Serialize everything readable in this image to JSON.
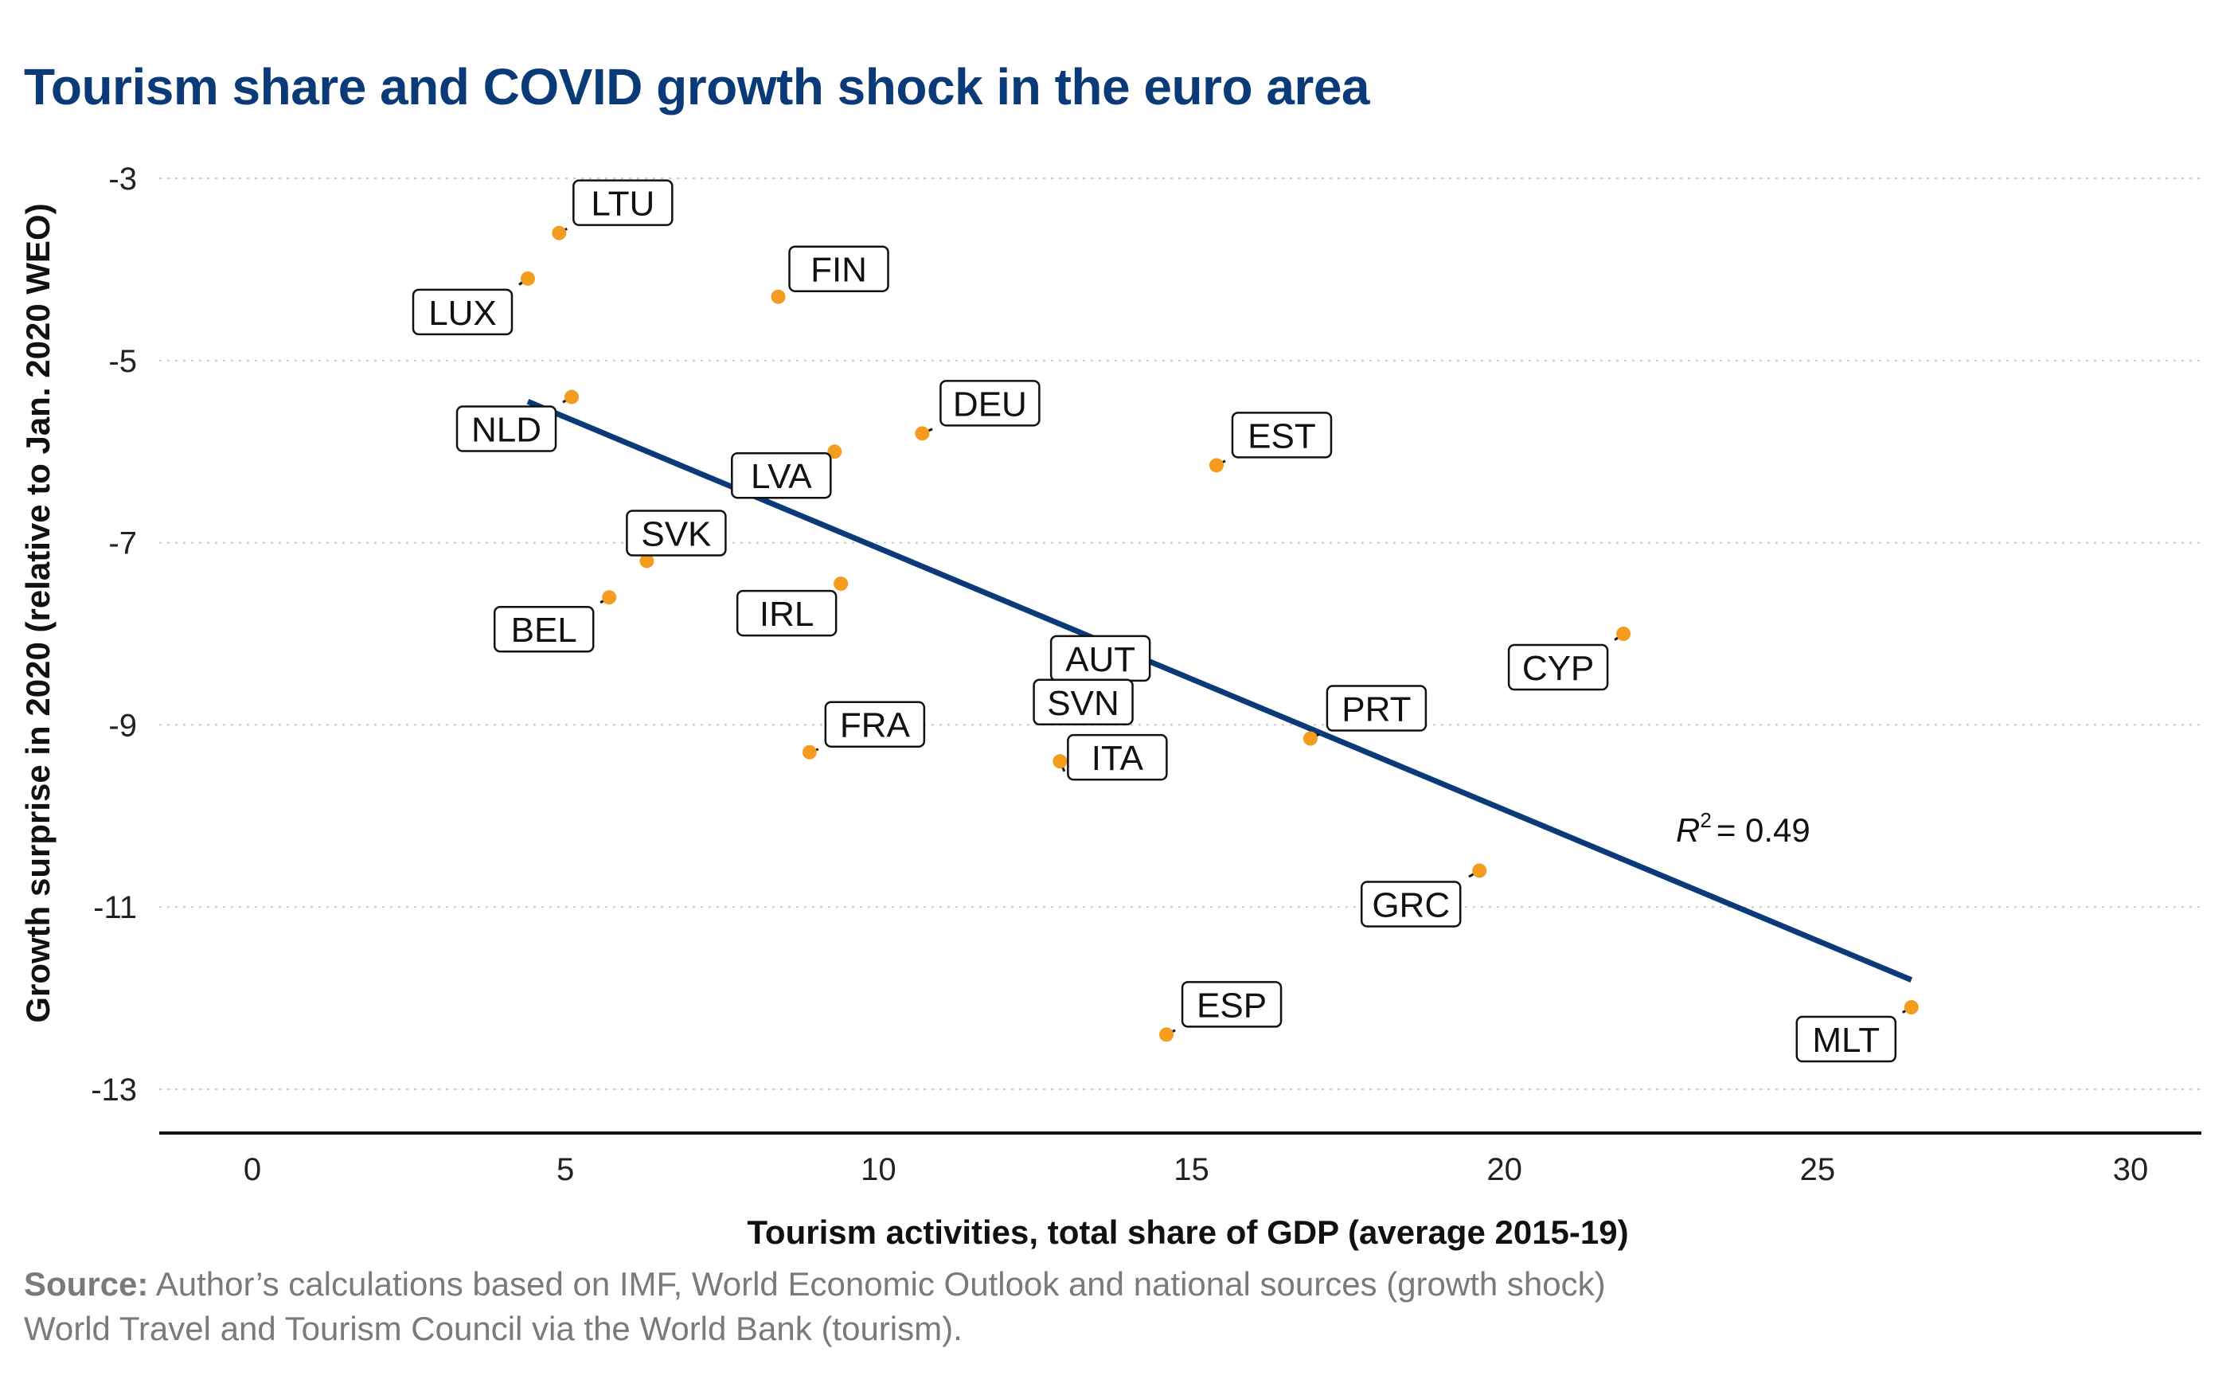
{
  "title": "Tourism share and COVID growth shock in the euro area",
  "source": {
    "label": "Source:",
    "line1": " Author’s calculations based on IMF, World Economic Outlook and national sources (growth shock)",
    "line2": "World Travel and Tourism Council via the World Bank (tourism)."
  },
  "colors": {
    "title": "#0b3a78",
    "points": "#f39c1f",
    "trend": "#0b3a78",
    "grid": "#c8c8c8",
    "text": "#111111",
    "source": "#7a7a7a"
  },
  "chart_data": {
    "type": "scatter",
    "xlabel": "Tourism activities, total share of GDP (average 2015-19)",
    "ylabel": "Growth surprise in 2020 (relative to Jan. 2020 WEO)",
    "xlim": [
      -1.5,
      31.5
    ],
    "ylim": [
      -13.5,
      -2.6
    ],
    "x_ticks": [
      0,
      5,
      10,
      15,
      20,
      25,
      30
    ],
    "y_ticks": [
      -3,
      -5,
      -7,
      -9,
      -11,
      -13
    ],
    "grid": "horizontal dotted",
    "points": [
      {
        "label": "LTU",
        "x": 4.9,
        "y": -3.6
      },
      {
        "label": "LUX",
        "x": 4.4,
        "y": -4.1
      },
      {
        "label": "FIN",
        "x": 8.4,
        "y": -4.3
      },
      {
        "label": "NLD",
        "x": 5.1,
        "y": -5.4
      },
      {
        "label": "DEU",
        "x": 10.7,
        "y": -5.8
      },
      {
        "label": "LVA",
        "x": 9.3,
        "y": -6.0
      },
      {
        "label": "EST",
        "x": 15.4,
        "y": -6.15
      },
      {
        "label": "SVK",
        "x": 6.3,
        "y": -7.2
      },
      {
        "label": "BEL",
        "x": 5.7,
        "y": -7.6
      },
      {
        "label": "IRL",
        "x": 9.4,
        "y": -7.45
      },
      {
        "label": "AUT",
        "x": 13.8,
        "y": -8.2
      },
      {
        "label": "SVN",
        "x": 13.5,
        "y": -8.4
      },
      {
        "label": "CYP",
        "x": 21.9,
        "y": -8.0
      },
      {
        "label": "PRT",
        "x": 16.9,
        "y": -9.15
      },
      {
        "label": "FRA",
        "x": 8.9,
        "y": -9.3
      },
      {
        "label": "ITA",
        "x": 12.9,
        "y": -9.4
      },
      {
        "label": "GRC",
        "x": 19.6,
        "y": -10.6
      },
      {
        "label": "ESP",
        "x": 14.6,
        "y": -12.4
      },
      {
        "label": "MLT",
        "x": 26.5,
        "y": -12.1
      }
    ],
    "trendline": {
      "x": [
        4.4,
        26.5
      ],
      "y": [
        -5.45,
        -11.8
      ]
    },
    "r2_label": "= 0.49"
  }
}
